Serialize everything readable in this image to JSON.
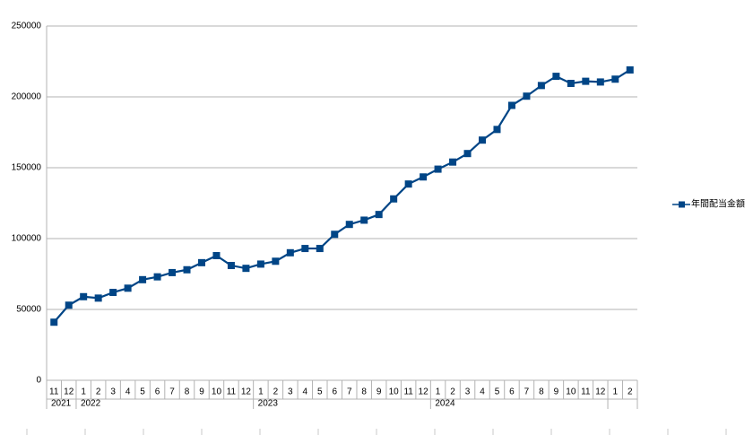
{
  "chart_data": {
    "type": "line",
    "groups": [
      {
        "label": "2021",
        "categories": [
          "11",
          "12"
        ]
      },
      {
        "label": "2022",
        "categories": [
          "1",
          "2",
          "3",
          "4",
          "5",
          "6",
          "7",
          "8",
          "9",
          "10",
          "11",
          "12"
        ]
      },
      {
        "label": "2023",
        "categories": [
          "1",
          "2",
          "3",
          "4",
          "5",
          "6",
          "7",
          "8",
          "9",
          "10",
          "11",
          "12"
        ]
      },
      {
        "label": "2024",
        "categories": [
          "1",
          "2",
          "3",
          "4",
          "5",
          "6",
          "7",
          "8",
          "9",
          "10",
          "11",
          "12"
        ]
      },
      {
        "label": null,
        "categories": [
          "1",
          "2"
        ]
      }
    ],
    "series": [
      {
        "name": "年間配当金額",
        "color": "#004586",
        "values": [
          41000,
          53000,
          59000,
          58000,
          62000,
          65000,
          71000,
          73000,
          76000,
          78000,
          83000,
          88000,
          81000,
          79000,
          82000,
          84000,
          90000,
          93000,
          93000,
          103000,
          110000,
          113000,
          117000,
          128000,
          138500,
          143500,
          149000,
          154000,
          160000,
          169500,
          177000,
          194000,
          200500,
          208000,
          214500,
          209500,
          211000,
          210500,
          212500,
          219000
        ]
      }
    ],
    "ylim": [
      0,
      250000
    ],
    "yticks": [
      0,
      50000,
      100000,
      150000,
      200000,
      250000
    ],
    "grid": true,
    "legend": "right"
  }
}
